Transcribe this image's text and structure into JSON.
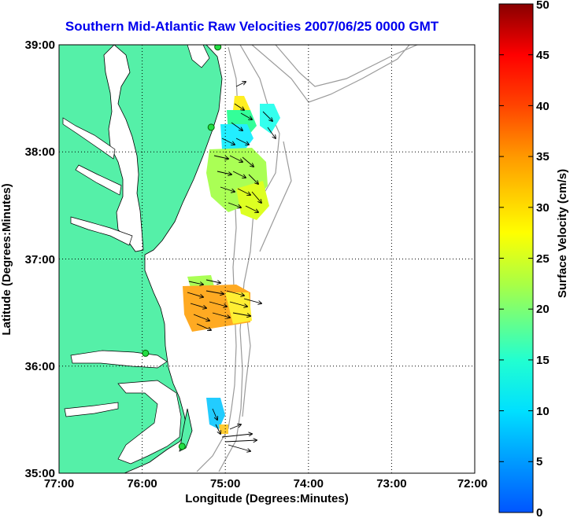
{
  "map": {
    "title": "Southern Mid-Atlantic Raw Velocities 2007/06/25 0000 GMT",
    "xlabel": "Longitude (Degrees:Minutes)",
    "ylabel": "Latitude (Degrees:Minutes)",
    "lon_range": [
      -77,
      -72
    ],
    "lat_range": [
      35,
      39
    ],
    "x_ticks": [
      "77:00",
      "76:00",
      "75:00",
      "74:00",
      "73:00",
      "72:00"
    ],
    "y_ticks": [
      "39:00",
      "38:00",
      "37:00",
      "36:00",
      "35:00"
    ],
    "land_color": "#55f0a8",
    "stations": [
      [
        -75.09,
        38.98
      ],
      [
        -75.17,
        38.23
      ],
      [
        -75.96,
        36.12
      ],
      [
        -75.52,
        35.25
      ]
    ]
  },
  "colorbar": {
    "label": "Surface Velocity (cm/s)",
    "ticks": [
      "0",
      "5",
      "10",
      "15",
      "20",
      "25",
      "30",
      "35",
      "40",
      "45",
      "50"
    ],
    "range": [
      0,
      50
    ]
  }
}
